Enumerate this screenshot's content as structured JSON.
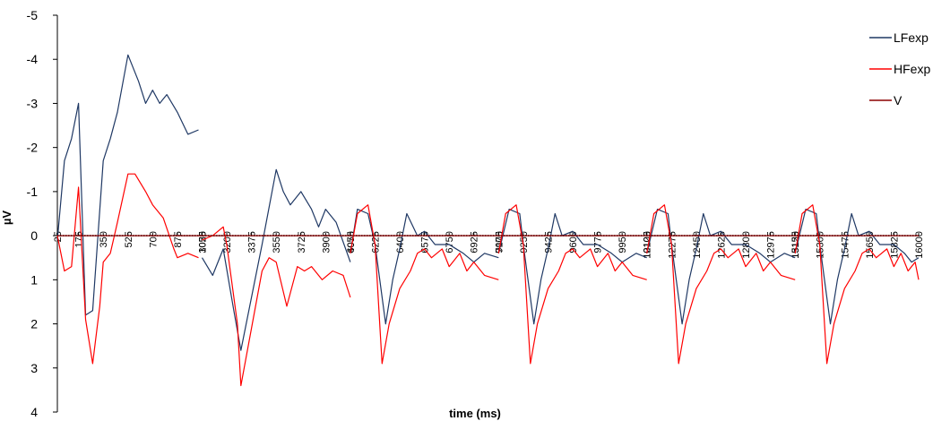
{
  "chart_data": {
    "type": "line",
    "title": "",
    "xlabel": "time (ms)",
    "ylabel": "µV",
    "ylim": [
      -5,
      4
    ],
    "y_inverted": true,
    "y_ticks": [
      "-5",
      "-4",
      "-3",
      "-2",
      "-1",
      "0",
      "1",
      "2",
      "3",
      "4"
    ],
    "grid": false,
    "legend_position": "top-right",
    "x_tick_labels": [
      "25",
      "175",
      "350",
      "525",
      "700",
      "875",
      "1050",
      "3025",
      "3200",
      "3375",
      "3550",
      "3725",
      "3900",
      "4075",
      "6050",
      "6225",
      "6400",
      "6575",
      "6750",
      "6925",
      "7100",
      "9075",
      "9250",
      "9425",
      "9600",
      "9775",
      "9950",
      "10125",
      "12100",
      "12275",
      "12450",
      "12625",
      "12800",
      "12975",
      "13150",
      "15125",
      "15300",
      "15475",
      "15650",
      "15825",
      "16000"
    ],
    "segments": [
      {
        "x_start": 25,
        "x_end": 1050
      },
      {
        "x_start": 3025,
        "x_end": 4075
      },
      {
        "x_start": 6050,
        "x_end": 7100
      },
      {
        "x_start": 9075,
        "x_end": 10125
      },
      {
        "x_start": 12100,
        "x_end": 13150
      },
      {
        "x_start": 15125,
        "x_end": 16000
      }
    ],
    "series": [
      {
        "name": "LFexp",
        "color": "#1F3864",
        "segments": [
          {
            "x": [
              25,
              75,
              125,
              175,
              225,
              275,
              350,
              400,
              450,
              525,
              600,
              650,
              700,
              750,
              800,
              875,
              950,
              1025
            ],
            "y": [
              0.1,
              -1.7,
              -2.2,
              -3.0,
              1.8,
              1.7,
              -1.7,
              -2.2,
              -2.8,
              -4.1,
              -3.5,
              -3.0,
              -3.3,
              -3.0,
              -3.2,
              -2.8,
              -2.3,
              -2.4
            ]
          },
          {
            "x": [
              3025,
              3100,
              3175,
              3250,
              3300,
              3375,
              3450,
              3550,
              3600,
              3650,
              3725,
              3800,
              3850,
              3900,
              3975,
              4075
            ],
            "y": [
              0.5,
              0.9,
              0.3,
              1.7,
              2.6,
              1.4,
              0.2,
              -1.5,
              -1.0,
              -0.7,
              -1.0,
              -0.6,
              -0.2,
              -0.6,
              -0.3,
              0.6
            ]
          },
          {
            "x": [
              6050,
              6100,
              6175,
              6225,
              6300,
              6350,
              6400,
              6450,
              6525,
              6575,
              6650,
              6750,
              6850,
              6925,
              7000,
              7100
            ],
            "y": [
              0.4,
              -0.6,
              -0.5,
              0.2,
              2.0,
              1.0,
              0.3,
              -0.5,
              0.0,
              -0.1,
              0.2,
              0.2,
              0.4,
              0.6,
              0.4,
              0.5
            ]
          },
          {
            "x": [
              9075,
              9150,
              9225,
              9250,
              9325,
              9375,
              9425,
              9475,
              9525,
              9600,
              9675,
              9775,
              9875,
              9950,
              10050,
              10125
            ],
            "y": [
              0.4,
              -0.6,
              -0.5,
              0.2,
              2.0,
              1.0,
              0.3,
              -0.5,
              0.0,
              -0.1,
              0.2,
              0.2,
              0.4,
              0.6,
              0.4,
              0.5
            ]
          },
          {
            "x": [
              12100,
              12175,
              12250,
              12275,
              12350,
              12400,
              12450,
              12500,
              12550,
              12625,
              12700,
              12800,
              12900,
              12975,
              13075,
              13150
            ],
            "y": [
              0.4,
              -0.6,
              -0.5,
              0.2,
              2.0,
              1.0,
              0.3,
              -0.5,
              0.0,
              -0.1,
              0.2,
              0.2,
              0.4,
              0.6,
              0.4,
              0.5
            ]
          },
          {
            "x": [
              15125,
              15200,
              15275,
              15300,
              15375,
              15425,
              15475,
              15525,
              15575,
              15650,
              15725,
              15825,
              15900,
              15950,
              16000
            ],
            "y": [
              0.4,
              -0.6,
              -0.5,
              0.2,
              2.0,
              1.0,
              0.3,
              -0.5,
              0.0,
              -0.1,
              0.2,
              0.2,
              0.4,
              0.6,
              0.5
            ]
          }
        ]
      },
      {
        "name": "HFexp",
        "color": "#FF0000",
        "segments": [
          {
            "x": [
              25,
              75,
              125,
              175,
              225,
              275,
              325,
              350,
              400,
              450,
              525,
              575,
              650,
              700,
              775,
              850,
              875,
              950,
              1025
            ],
            "y": [
              0.0,
              0.8,
              0.7,
              -1.1,
              1.9,
              2.9,
              1.6,
              0.6,
              0.4,
              -0.3,
              -1.4,
              -1.4,
              -1.0,
              -0.7,
              -0.4,
              0.3,
              0.5,
              0.4,
              0.5
            ]
          },
          {
            "x": [
              3025,
              3100,
              3175,
              3200,
              3275,
              3300,
              3375,
              3450,
              3500,
              3550,
              3625,
              3700,
              3750,
              3800,
              3875,
              3950,
              4025,
              4075
            ],
            "y": [
              0.1,
              0.0,
              -0.2,
              0.2,
              2.0,
              3.4,
              2.1,
              0.8,
              0.5,
              0.6,
              1.6,
              0.7,
              0.8,
              0.7,
              1.0,
              0.8,
              0.9,
              1.4
            ]
          },
          {
            "x": [
              6050,
              6100,
              6175,
              6225,
              6275,
              6325,
              6400,
              6475,
              6525,
              6575,
              6625,
              6700,
              6750,
              6825,
              6875,
              6925,
              7000,
              7100
            ],
            "y": [
              0.4,
              -0.5,
              -0.7,
              0.2,
              2.9,
              2.0,
              1.2,
              0.8,
              0.4,
              0.3,
              0.5,
              0.3,
              0.7,
              0.4,
              0.8,
              0.6,
              0.9,
              1.0
            ]
          },
          {
            "x": [
              9075,
              9125,
              9200,
              9250,
              9300,
              9350,
              9425,
              9500,
              9550,
              9600,
              9650,
              9725,
              9775,
              9850,
              9900,
              9950,
              10025,
              10125
            ],
            "y": [
              0.4,
              -0.5,
              -0.7,
              0.2,
              2.9,
              2.0,
              1.2,
              0.8,
              0.4,
              0.3,
              0.5,
              0.3,
              0.7,
              0.4,
              0.8,
              0.6,
              0.9,
              1.0
            ]
          },
          {
            "x": [
              12100,
              12150,
              12225,
              12275,
              12325,
              12375,
              12450,
              12525,
              12575,
              12625,
              12675,
              12750,
              12800,
              12875,
              12925,
              12975,
              13050,
              13150
            ],
            "y": [
              0.4,
              -0.5,
              -0.7,
              0.2,
              2.9,
              2.0,
              1.2,
              0.8,
              0.4,
              0.3,
              0.5,
              0.3,
              0.7,
              0.4,
              0.8,
              0.6,
              0.9,
              1.0
            ]
          },
          {
            "x": [
              15125,
              15175,
              15250,
              15300,
              15350,
              15400,
              15475,
              15550,
              15600,
              15650,
              15700,
              15775,
              15825,
              15875,
              15925,
              15975,
              16000
            ],
            "y": [
              0.4,
              -0.5,
              -0.7,
              0.2,
              2.9,
              2.0,
              1.2,
              0.8,
              0.4,
              0.3,
              0.5,
              0.3,
              0.7,
              0.4,
              0.8,
              0.6,
              1.0
            ]
          }
        ]
      },
      {
        "name": "V",
        "color": "#8B0000",
        "segments": [
          {
            "x": [
              25,
              1050
            ],
            "y": [
              0,
              0
            ]
          },
          {
            "x": [
              3025,
              4075
            ],
            "y": [
              0,
              0
            ]
          },
          {
            "x": [
              6050,
              7100
            ],
            "y": [
              0,
              0
            ]
          },
          {
            "x": [
              9075,
              10125
            ],
            "y": [
              0,
              0
            ]
          },
          {
            "x": [
              12100,
              13150
            ],
            "y": [
              0,
              0
            ]
          },
          {
            "x": [
              15125,
              16000
            ],
            "y": [
              0,
              0
            ]
          }
        ]
      }
    ]
  }
}
